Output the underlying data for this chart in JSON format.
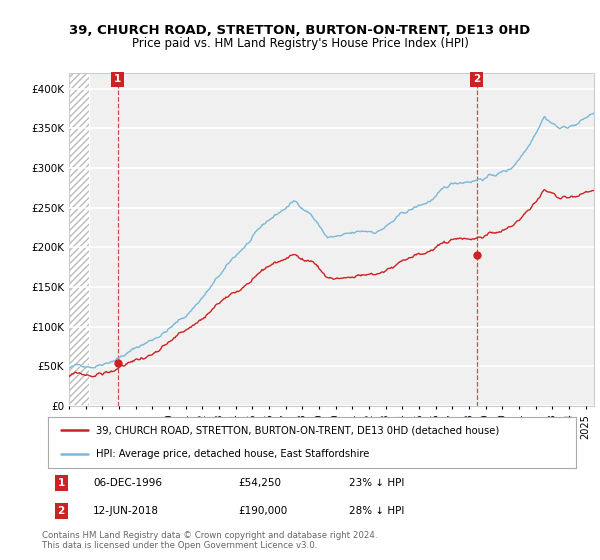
{
  "title_line1": "39, CHURCH ROAD, STRETTON, BURTON-ON-TRENT, DE13 0HD",
  "title_line2": "Price paid vs. HM Land Registry's House Price Index (HPI)",
  "hpi_color": "#7ab8d9",
  "price_color": "#cc2222",
  "marker_color": "#cc2222",
  "annotation_box_color": "#cc2222",
  "sale1_year": 1996.92,
  "sale1_price": 54250,
  "sale1_label": "1",
  "sale1_date": "06-DEC-1996",
  "sale1_pct": "23% ↓ HPI",
  "sale2_year": 2018.45,
  "sale2_price": 190000,
  "sale2_label": "2",
  "sale2_date": "12-JUN-2018",
  "sale2_pct": "28% ↓ HPI",
  "legend_line1": "39, CHURCH ROAD, STRETTON, BURTON-ON-TRENT, DE13 0HD (detached house)",
  "legend_line2": "HPI: Average price, detached house, East Staffordshire",
  "footer": "Contains HM Land Registry data © Crown copyright and database right 2024.\nThis data is licensed under the Open Government Licence v3.0.",
  "background_color": "#ffffff",
  "plot_bg_color": "#f0f0f0",
  "grid_color": "#ffffff",
  "xlim_start": 1994.0,
  "xlim_end": 2025.5,
  "ylim_min": 0,
  "ylim_max": 420000,
  "yticks": [
    0,
    50000,
    100000,
    150000,
    200000,
    250000,
    300000,
    350000,
    400000
  ],
  "ytick_labels": [
    "£0",
    "£50K",
    "£100K",
    "£150K",
    "£200K",
    "£250K",
    "£300K",
    "£350K",
    "£400K"
  ],
  "xtick_years": [
    1994,
    1995,
    1996,
    1997,
    1998,
    1999,
    2000,
    2001,
    2002,
    2003,
    2004,
    2005,
    2006,
    2007,
    2008,
    2009,
    2010,
    2011,
    2012,
    2013,
    2014,
    2015,
    2016,
    2017,
    2018,
    2019,
    2020,
    2021,
    2022,
    2023,
    2024,
    2025
  ]
}
